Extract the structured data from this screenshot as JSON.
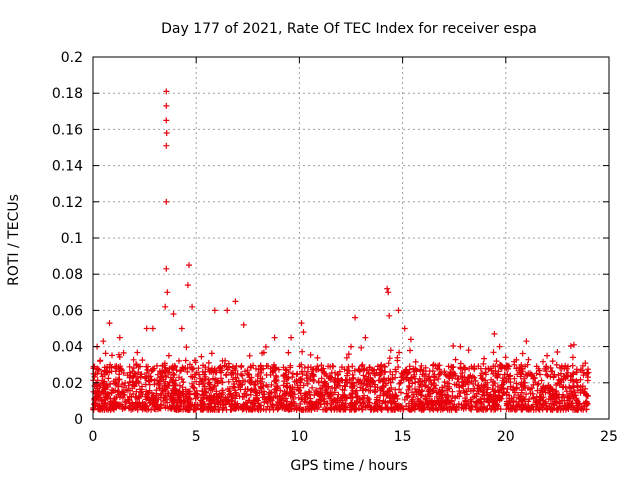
{
  "chart_data": {
    "type": "scatter",
    "title": "Day 177 of 2021, Rate Of TEC Index for receiver espa",
    "xlabel": "GPS time / hours",
    "ylabel": "ROTI / TECUs",
    "xlim": [
      0,
      25
    ],
    "ylim": [
      0,
      0.2
    ],
    "xticks": [
      0,
      5,
      10,
      15,
      20,
      25
    ],
    "yticks": [
      0,
      0.02,
      0.04,
      0.06,
      0.08,
      0.1,
      0.12,
      0.14,
      0.16,
      0.18,
      0.2
    ],
    "grid": true,
    "marker": "+",
    "series": [
      {
        "name": "ROTI",
        "color": "#e8000b",
        "points": [
          [
            3.55,
            0.181
          ],
          [
            3.55,
            0.173
          ],
          [
            3.55,
            0.165
          ],
          [
            3.57,
            0.158
          ],
          [
            3.55,
            0.151
          ],
          [
            3.55,
            0.12
          ],
          [
            3.55,
            0.083
          ],
          [
            4.65,
            0.085
          ],
          [
            4.6,
            0.074
          ],
          [
            3.6,
            0.07
          ],
          [
            14.25,
            0.072
          ],
          [
            14.3,
            0.07
          ],
          [
            14.35,
            0.057
          ],
          [
            14.8,
            0.06
          ],
          [
            6.9,
            0.065
          ],
          [
            0.8,
            0.053
          ],
          [
            10.1,
            0.053
          ],
          [
            12.7,
            0.056
          ],
          [
            19.45,
            0.047
          ],
          [
            23.3,
            0.041
          ],
          [
            21.0,
            0.043
          ],
          [
            3.5,
            0.062
          ],
          [
            3.9,
            0.058
          ],
          [
            4.8,
            0.062
          ],
          [
            5.9,
            0.06
          ],
          [
            6.5,
            0.06
          ],
          [
            7.3,
            0.052
          ],
          [
            2.6,
            0.05
          ],
          [
            2.9,
            0.05
          ],
          [
            8.8,
            0.045
          ],
          [
            9.6,
            0.045
          ],
          [
            10.2,
            0.048
          ],
          [
            12.5,
            0.04
          ],
          [
            13.2,
            0.045
          ],
          [
            15.1,
            0.05
          ],
          [
            15.4,
            0.044
          ],
          [
            17.8,
            0.04
          ],
          [
            18.2,
            0.038
          ],
          [
            19.7,
            0.04
          ],
          [
            22.0,
            0.035
          ],
          [
            22.5,
            0.037
          ],
          [
            0.2,
            0.04
          ],
          [
            0.5,
            0.043
          ],
          [
            1.3,
            0.045
          ],
          [
            4.3,
            0.05
          ]
        ]
      }
    ],
    "dense_band": {
      "description": "dense cloud of ROTI points",
      "x_range": [
        0,
        24
      ],
      "typical_min": 0.005,
      "typical_max": 0.03
    }
  }
}
